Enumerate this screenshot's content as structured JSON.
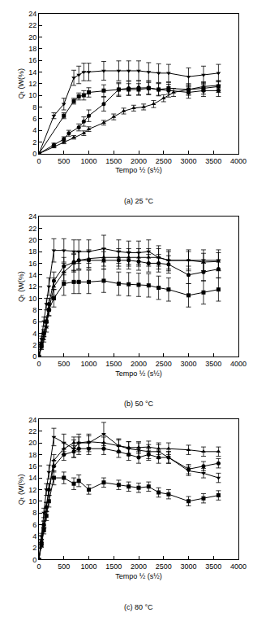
{
  "chart_data": [
    {
      "type": "line",
      "title": "(a) 25 °C",
      "x_label": "Tempo ½ (s½)",
      "y_label": "Qₜ (W(%)",
      "xlim": [
        0,
        4000
      ],
      "xticks": [
        0,
        500,
        1000,
        1500,
        2000,
        2500,
        3000,
        3500,
        4000
      ],
      "ylim": [
        0,
        24
      ],
      "yticks": [
        0,
        2,
        4,
        6,
        8,
        10,
        12,
        14,
        16,
        18,
        20,
        22,
        24
      ],
      "grid": false,
      "series": [
        {
          "color": "#000000",
          "marker": "triangle-down",
          "x": [
            0,
            300,
            500,
            700,
            800,
            900,
            1000,
            1300,
            1600,
            1800,
            2000,
            2200,
            2400,
            2600,
            3000,
            3300,
            3600
          ],
          "values": [
            0,
            6.5,
            8.5,
            13,
            13.5,
            14,
            14,
            14.2,
            14.2,
            14.2,
            14.2,
            14,
            13.8,
            13.8,
            13.2,
            13.5,
            13.8
          ],
          "errors": [
            0,
            0.5,
            1,
            1.3,
            1.5,
            1.5,
            1.5,
            1.6,
            1.7,
            1.7,
            1.7,
            1.6,
            1.6,
            1.5,
            1.5,
            1.5,
            1.5
          ]
        },
        {
          "color": "#000000",
          "marker": "square",
          "x": [
            0,
            500,
            700,
            800,
            900,
            1000,
            1300,
            1600,
            1800,
            2000,
            2200,
            2400,
            2600,
            3000,
            3300,
            3600
          ],
          "values": [
            0,
            6.5,
            9,
            9.8,
            10,
            10.5,
            10.8,
            11,
            11,
            11,
            11.2,
            11,
            11.2,
            11,
            11.2,
            11.5
          ],
          "errors": [
            0,
            0.5,
            0.5,
            0.6,
            0.8,
            0.8,
            1,
            1,
            1,
            1,
            1,
            1,
            1,
            1,
            1,
            1
          ]
        },
        {
          "color": "#000000",
          "marker": "circle",
          "x": [
            0,
            300,
            500,
            600,
            800,
            900,
            1000,
            1300,
            1600,
            1800,
            2000,
            2200,
            2400,
            2600,
            3000,
            3300,
            3600
          ],
          "values": [
            0,
            1.5,
            2.5,
            3.5,
            4.5,
            5.5,
            6.5,
            8.5,
            11,
            11.2,
            11.3,
            11.3,
            11,
            10.8,
            10.5,
            10.8,
            10.8
          ],
          "errors": [
            0,
            0.3,
            0.4,
            0.5,
            0.6,
            0.8,
            1,
            1.2,
            1.2,
            1.2,
            1.2,
            1.2,
            1.1,
            1.1,
            1,
            1,
            1
          ]
        },
        {
          "color": "#000000",
          "marker": "triangle-up",
          "x": [
            0,
            300,
            500,
            700,
            900,
            1000,
            1300,
            1500,
            1700,
            1900,
            2100,
            2300,
            2500,
            2700,
            3000,
            3300,
            3600
          ],
          "values": [
            0,
            1.2,
            2,
            2.8,
            3.5,
            4.2,
            5.3,
            6.3,
            7.3,
            7.8,
            8,
            8.5,
            9.5,
            10.5,
            11,
            11.5,
            11.7
          ],
          "errors": [
            0,
            0.2,
            0.3,
            0.3,
            0.4,
            0.4,
            0.4,
            0.5,
            0.5,
            0.5,
            0.5,
            0.6,
            0.6,
            0.7,
            0.8,
            0.8,
            0.8
          ]
        }
      ]
    },
    {
      "type": "line",
      "title": "(b) 50 °C",
      "x_label": "Tempo ½ (s½)",
      "y_label": "Qₜ (W(%)",
      "xlim": [
        0,
        4000
      ],
      "xticks": [
        0,
        500,
        1000,
        1500,
        2000,
        2500,
        3000,
        3500,
        4000
      ],
      "ylim": [
        0,
        24
      ],
      "yticks": [
        0,
        2,
        4,
        6,
        8,
        10,
        12,
        14,
        16,
        18,
        20,
        22,
        24
      ],
      "grid": false,
      "series": [
        {
          "color": "#000000",
          "marker": "triangle-down",
          "x": [
            0,
            50,
            100,
            150,
            200,
            300,
            500,
            700,
            800,
            1000,
            1300,
            1600,
            1800,
            2000,
            2200,
            2400,
            2600,
            3000,
            3300,
            3600
          ],
          "values": [
            0,
            3,
            6,
            9,
            12,
            18.2,
            18.2,
            18,
            18,
            18,
            18.5,
            18,
            17.8,
            17.8,
            18,
            17,
            16.5,
            16.5,
            16.5,
            16.5
          ],
          "errors": [
            0,
            0.5,
            0.8,
            1,
            1.5,
            2,
            2,
            2,
            2,
            2,
            2.3,
            2,
            2,
            2,
            2,
            2,
            1.8,
            1.8,
            1.8,
            1.8
          ]
        },
        {
          "color": "#000000",
          "marker": "triangle-up",
          "x": [
            0,
            50,
            100,
            150,
            200,
            300,
            500,
            700,
            800,
            1000,
            1300,
            1600,
            1800,
            2000,
            2200,
            2400,
            2600,
            3000,
            3300,
            3600
          ],
          "values": [
            0,
            1.5,
            3,
            5,
            8,
            12,
            14.5,
            16,
            16.5,
            16.8,
            17,
            17,
            17,
            17,
            17,
            17,
            16.5,
            16.5,
            16.2,
            16.3
          ],
          "errors": [
            0,
            0.3,
            0.5,
            0.8,
            1,
            1.5,
            1.5,
            1.5,
            1.5,
            1.5,
            1.5,
            1.5,
            1.5,
            1.5,
            1.5,
            1.5,
            1.5,
            1.5,
            1.5,
            1.5
          ]
        },
        {
          "color": "#000000",
          "marker": "circle",
          "x": [
            0,
            50,
            100,
            150,
            200,
            300,
            500,
            700,
            800,
            1000,
            1300,
            1600,
            1800,
            2000,
            2200,
            2400,
            2600,
            3000,
            3300,
            3600
          ],
          "values": [
            0,
            2,
            4,
            6,
            9,
            13,
            15.5,
            16.2,
            16.5,
            16.5,
            16.5,
            16.5,
            16.5,
            16.3,
            16,
            16,
            15.8,
            14,
            14.5,
            15
          ],
          "errors": [
            0,
            0.4,
            0.6,
            0.8,
            1,
            1.5,
            1.5,
            1.5,
            1.5,
            1.5,
            1.5,
            1.5,
            1.5,
            1.5,
            1.5,
            1.5,
            1.5,
            1.5,
            1.5,
            1.5
          ]
        },
        {
          "color": "#000000",
          "marker": "square",
          "x": [
            0,
            50,
            100,
            150,
            200,
            300,
            500,
            700,
            800,
            1000,
            1300,
            1600,
            1800,
            2000,
            2200,
            2400,
            2600,
            3000,
            3300,
            3600
          ],
          "values": [
            0,
            2,
            4,
            6,
            8,
            10,
            12.5,
            12.8,
            12.8,
            12.8,
            13,
            12.5,
            12.4,
            12.3,
            12.2,
            11.8,
            11.5,
            10.5,
            11,
            11.5
          ],
          "errors": [
            0,
            0.4,
            0.6,
            0.8,
            1,
            1.5,
            2,
            2,
            2,
            2,
            2,
            2,
            2,
            2,
            2,
            2,
            2,
            2,
            2,
            2
          ]
        }
      ]
    },
    {
      "type": "line",
      "title": "(c) 80 °C",
      "x_label": "Tempo ½ (s½)",
      "y_label": "Qₜ (W(%)",
      "xlim": [
        0,
        4000
      ],
      "xticks": [
        0,
        500,
        1000,
        1500,
        2000,
        2500,
        3000,
        3500,
        4000
      ],
      "ylim": [
        0,
        24
      ],
      "yticks": [
        0,
        2,
        4,
        6,
        8,
        10,
        12,
        14,
        16,
        18,
        20,
        22,
        24
      ],
      "grid": false,
      "series": [
        {
          "color": "#000000",
          "marker": "triangle-down",
          "x": [
            0,
            50,
            100,
            150,
            200,
            300,
            500,
            700,
            800,
            1000,
            1300,
            1600,
            1800,
            2000,
            2200,
            2400,
            2600,
            3000,
            3300,
            3600
          ],
          "values": [
            0,
            4,
            8,
            12,
            15,
            21,
            20,
            19,
            20,
            20,
            21.5,
            19.5,
            19,
            18.8,
            18.5,
            18.5,
            17.5,
            15.2,
            14.8,
            14
          ],
          "errors": [
            0,
            0.5,
            0.8,
            1,
            1.2,
            1.5,
            1.5,
            1.5,
            1.5,
            1.5,
            2,
            1.2,
            1.2,
            1.2,
            1.2,
            1.2,
            1,
            0.8,
            0.8,
            0.8
          ]
        },
        {
          "color": "#000000",
          "marker": "triangle-up",
          "x": [
            0,
            50,
            100,
            150,
            200,
            300,
            500,
            700,
            800,
            1000,
            1300,
            1600,
            1800,
            2000,
            2200,
            2400,
            2600,
            3000,
            3300,
            3600
          ],
          "values": [
            0,
            3,
            6,
            9,
            12,
            17,
            19,
            20,
            20,
            20.2,
            20,
            19.5,
            19.2,
            19.2,
            19.3,
            19,
            19,
            18.8,
            18.5,
            18.5
          ],
          "errors": [
            0,
            0.4,
            0.6,
            0.8,
            1,
            1,
            1,
            1,
            1,
            1,
            1,
            1,
            1,
            1,
            1,
            1,
            1,
            0.8,
            0.8,
            0.8
          ]
        },
        {
          "color": "#000000",
          "marker": "circle",
          "x": [
            0,
            50,
            100,
            150,
            200,
            300,
            500,
            700,
            800,
            1000,
            1300,
            1600,
            1800,
            2000,
            2200,
            2400,
            2600,
            3000,
            3300,
            3600
          ],
          "values": [
            0,
            3,
            6,
            9,
            12,
            16,
            18,
            18.5,
            19,
            19,
            19,
            18.5,
            18,
            17.5,
            18,
            17.5,
            17.5,
            15.5,
            16,
            16.5
          ],
          "errors": [
            0,
            0.4,
            0.6,
            0.8,
            1,
            1,
            1,
            1,
            1,
            1,
            1,
            1,
            1,
            1,
            1,
            1,
            1,
            0.8,
            0.8,
            0.8
          ]
        },
        {
          "color": "#000000",
          "marker": "square",
          "x": [
            0,
            50,
            100,
            150,
            200,
            300,
            500,
            700,
            800,
            1000,
            1300,
            1600,
            1800,
            2000,
            2200,
            2400,
            2600,
            3000,
            3300,
            3600
          ],
          "values": [
            0,
            2.5,
            5,
            7.5,
            10,
            14,
            14,
            13,
            13.5,
            12,
            13.2,
            12.8,
            12.5,
            12.3,
            12.5,
            11.5,
            11.2,
            10,
            10.5,
            11
          ],
          "errors": [
            0,
            0.4,
            0.6,
            0.8,
            1,
            1.2,
            1,
            1,
            1,
            0.8,
            0.8,
            0.8,
            0.8,
            0.8,
            0.8,
            0.8,
            0.8,
            0.8,
            0.8,
            0.8
          ]
        }
      ]
    }
  ]
}
